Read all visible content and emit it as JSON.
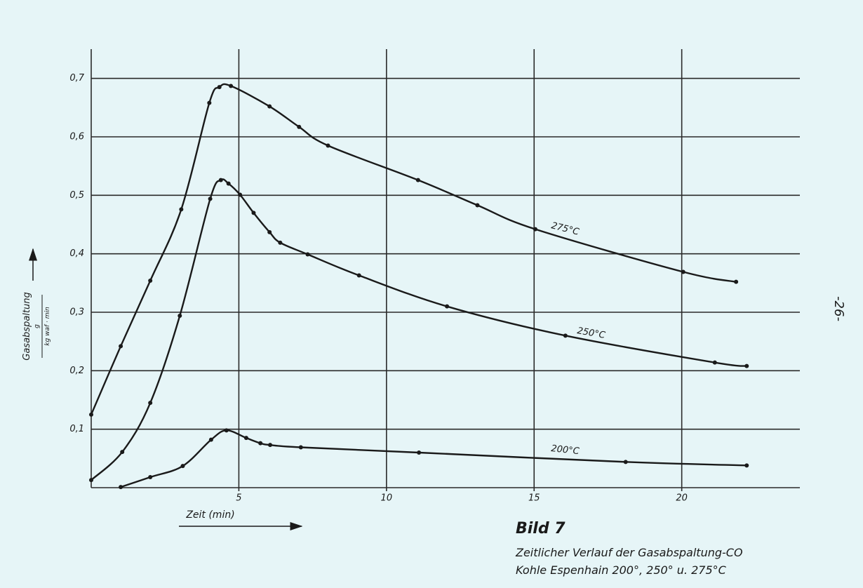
{
  "chart_data": {
    "type": "line",
    "x_label": "Zeit (min)",
    "y_label": "Gasabspaltung",
    "y_unit_numerator": "g",
    "y_unit_denominator": "kg waf · min",
    "caption_title": "Bild 7",
    "caption_lines": [
      "Zeitlicher Verlauf der Gasabspaltung-CO",
      "Kohle Espenhain 200°, 250° u. 275°C"
    ],
    "page_number": "-26-",
    "xlim": [
      0,
      24
    ],
    "ylim": [
      0,
      0.75
    ],
    "xticks": [
      5,
      10,
      15,
      20
    ],
    "yticks": [
      {
        "value": 0.1,
        "label": "0,1"
      },
      {
        "value": 0.2,
        "label": "0,2"
      },
      {
        "value": 0.3,
        "label": "0,3"
      },
      {
        "value": 0.4,
        "label": "0,4"
      },
      {
        "value": 0.5,
        "label": "0,5"
      },
      {
        "value": 0.6,
        "label": "0,6"
      },
      {
        "value": 0.7,
        "label": "0,7"
      }
    ],
    "grid": true,
    "series": [
      {
        "name": "275°C",
        "color": "#1a1a1a",
        "x": [
          0,
          1,
          2,
          3.05,
          4,
          4.34,
          4.73,
          6.04,
          7.04,
          8.02,
          11.07,
          13.08,
          15.04,
          20.05,
          21.84
        ],
        "values": [
          0.125,
          0.242,
          0.354,
          0.476,
          0.658,
          0.685,
          0.687,
          0.652,
          0.617,
          0.585,
          0.526,
          0.483,
          0.442,
          0.369,
          0.352
        ]
      },
      {
        "name": "250°C",
        "color": "#1a1a1a",
        "x": [
          0,
          1.05,
          2,
          3,
          4.03,
          4.39,
          4.65,
          5.04,
          5.5,
          6.04,
          6.4,
          7.33,
          9.07,
          12.05,
          16.06,
          21.12,
          22.2
        ],
        "values": [
          0.013,
          0.061,
          0.145,
          0.294,
          0.494,
          0.526,
          0.52,
          0.501,
          0.47,
          0.437,
          0.419,
          0.399,
          0.363,
          0.31,
          0.26,
          0.214,
          0.208
        ]
      },
      {
        "name": "200°C",
        "color": "#1a1a1a",
        "x": [
          1,
          2,
          3.1,
          4.06,
          4.58,
          5.25,
          5.73,
          6.06,
          7.1,
          11.1,
          18.1,
          22.2
        ],
        "values": [
          0.001,
          0.018,
          0.037,
          0.082,
          0.098,
          0.085,
          0.076,
          0.073,
          0.069,
          0.06,
          0.044,
          0.038
        ]
      }
    ]
  }
}
